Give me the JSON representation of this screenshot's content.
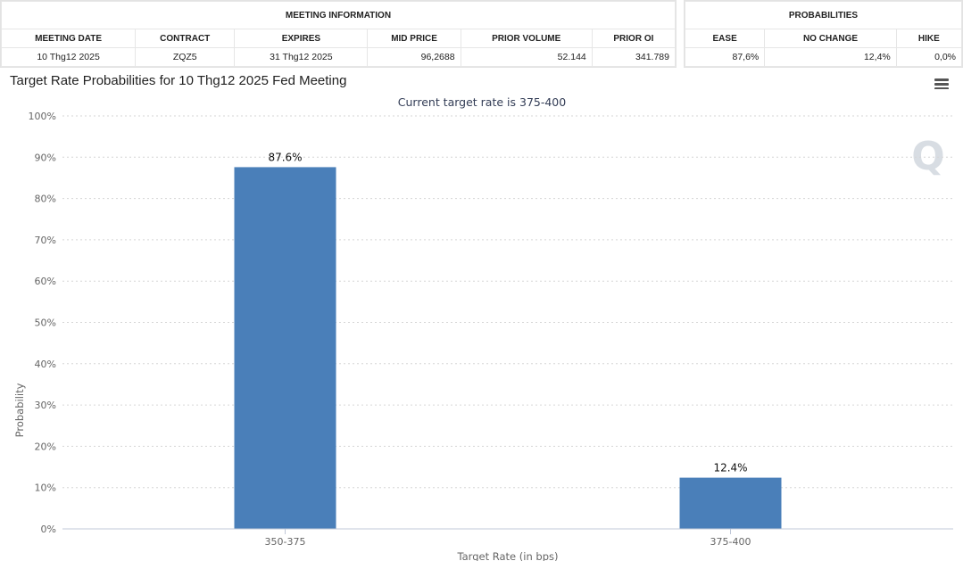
{
  "meeting_info": {
    "section_title": "MEETING INFORMATION",
    "columns": [
      "MEETING DATE",
      "CONTRACT",
      "EXPIRES",
      "MID PRICE",
      "PRIOR VOLUME",
      "PRIOR OI"
    ],
    "row": [
      "10 Thg12 2025",
      "ZQZ5",
      "31 Thg12 2025",
      "96,2688",
      "52.144",
      "341.789"
    ]
  },
  "probabilities": {
    "section_title": "PROBABILITIES",
    "columns": [
      "EASE",
      "NO CHANGE",
      "HIKE"
    ],
    "row": [
      "87,6%",
      "12,4%",
      "0,0%"
    ]
  },
  "chart_header": {
    "title": "Target Rate Probabilities for 10 Thg12 2025 Fed Meeting",
    "menu_icon": "hamburger-menu-icon",
    "watermark_icon": "q-logo-icon"
  },
  "chart_data": {
    "type": "bar",
    "title": "Target Rate Probabilities for 10 Thg12 2025 Fed Meeting",
    "subtitle": "Current target rate is 375-400",
    "categories": [
      "350-375",
      "375-400"
    ],
    "values": [
      87.6,
      12.4
    ],
    "data_labels": [
      "87.6%",
      "12.4%"
    ],
    "xlabel": "Target Rate (in bps)",
    "ylabel": "Probability",
    "ylim": [
      0,
      100
    ],
    "yticks": [
      0,
      10,
      20,
      30,
      40,
      50,
      60,
      70,
      80,
      90,
      100
    ],
    "ytick_labels": [
      "0%",
      "10%",
      "20%",
      "30%",
      "40%",
      "50%",
      "60%",
      "70%",
      "80%",
      "90%",
      "100%"
    ],
    "grid": true,
    "bar_color": "#4a7fb9"
  }
}
